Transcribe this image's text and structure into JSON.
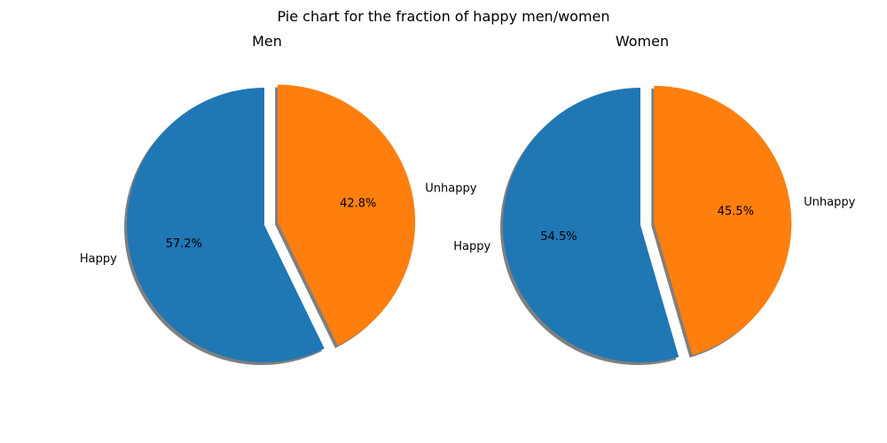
{
  "suptitle": "Pie chart for the fraction of happy men/women",
  "colors": {
    "happy": "#1f77b4",
    "unhappy": "#ff7f0e",
    "shadow": "#7f7f7f"
  },
  "chart_data": [
    {
      "type": "pie",
      "title": "Men",
      "labels": [
        "Happy",
        "Unhappy"
      ],
      "values": [
        57.2,
        42.8
      ],
      "autopct": [
        "57.2%",
        "42.8%"
      ],
      "explode": [
        0,
        0.1
      ],
      "startangle": 90,
      "shadow": true
    },
    {
      "type": "pie",
      "title": "Women",
      "labels": [
        "Happy",
        "Unhappy"
      ],
      "values": [
        54.5,
        45.5
      ],
      "autopct": [
        "54.5%",
        "45.5%"
      ],
      "explode": [
        0,
        0.1
      ],
      "startangle": 90,
      "shadow": true
    }
  ]
}
